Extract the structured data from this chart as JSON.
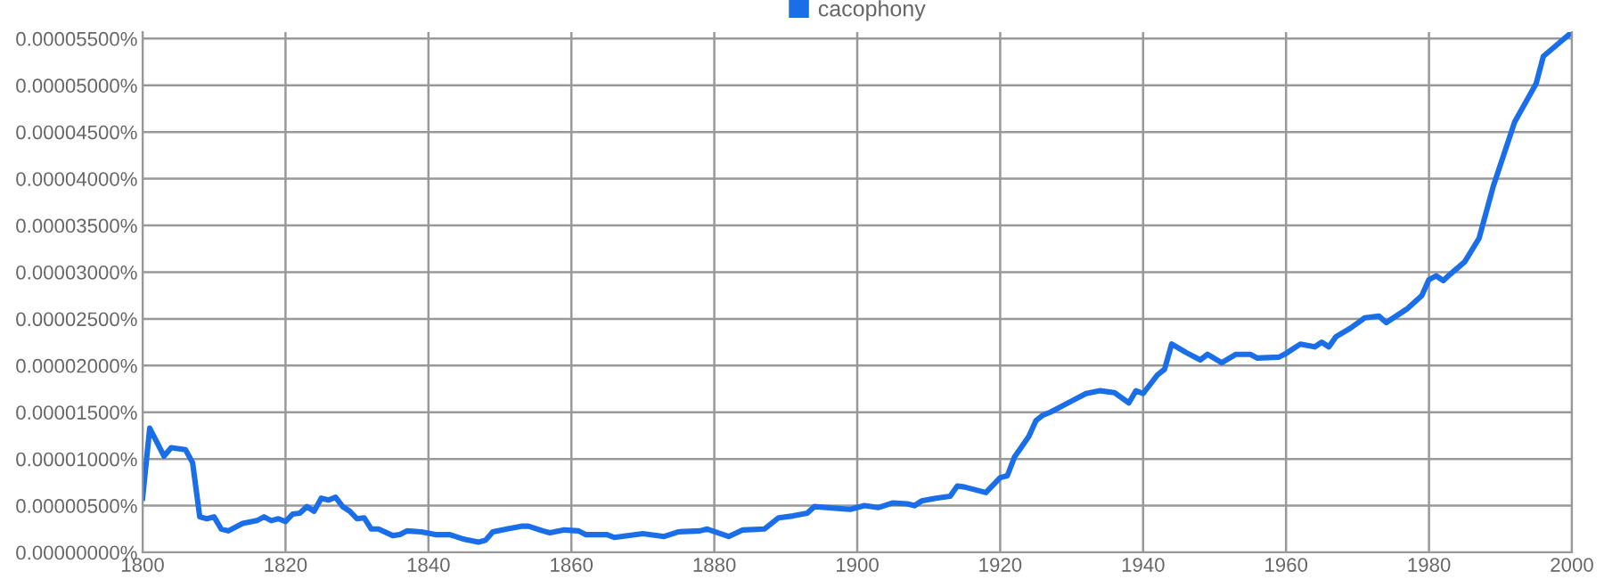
{
  "chart_data": {
    "type": "line",
    "legend": "top",
    "grid": true,
    "marker": "none",
    "line_style": "solid",
    "xlim": [
      1800,
      2000
    ],
    "xticks": [
      1800,
      1820,
      1840,
      1860,
      1880,
      1900,
      1920,
      1940,
      1960,
      1980,
      2000
    ],
    "ylim": [
      0,
      5.57e-05
    ],
    "yticks": [
      {
        "value": 0,
        "label": "0.00000000%"
      },
      {
        "value": 5e-06,
        "label": "0.00000500%"
      },
      {
        "value": 1e-05,
        "label": "0.00001000%"
      },
      {
        "value": 1.5e-05,
        "label": "0.00001500%"
      },
      {
        "value": 2e-05,
        "label": "0.00002000%"
      },
      {
        "value": 2.5e-05,
        "label": "0.00002500%"
      },
      {
        "value": 3e-05,
        "label": "0.00003000%"
      },
      {
        "value": 3.5e-05,
        "label": "0.00003500%"
      },
      {
        "value": 4e-05,
        "label": "0.00004000%"
      },
      {
        "value": 4.5e-05,
        "label": "0.00004500%"
      },
      {
        "value": 5e-05,
        "label": "0.00005000%"
      },
      {
        "value": 5.5e-05,
        "label": "0.00005500%"
      }
    ],
    "series": [
      {
        "name": "cacophony",
        "color": "#1a6fe8",
        "x": [
          1800,
          1801,
          1803,
          1804,
          1806,
          1807,
          1808,
          1809,
          1810,
          1811,
          1812,
          1814,
          1816,
          1817,
          1818,
          1819,
          1820,
          1821,
          1822,
          1823,
          1824,
          1825,
          1826,
          1827,
          1828,
          1829,
          1830,
          1831,
          1832,
          1833,
          1835,
          1836,
          1837,
          1839,
          1841,
          1843,
          1845,
          1847,
          1848,
          1849,
          1851,
          1853,
          1854,
          1856,
          1857,
          1859,
          1861,
          1862,
          1865,
          1866,
          1870,
          1873,
          1875,
          1878,
          1879,
          1882,
          1884,
          1887,
          1889,
          1891,
          1893,
          1894,
          1899,
          1901,
          1903,
          1905,
          1907,
          1908,
          1909,
          1911,
          1913,
          1914,
          1915,
          1918,
          1920,
          1921,
          1922,
          1924,
          1925,
          1926,
          1927,
          1930,
          1932,
          1934,
          1936,
          1938,
          1939,
          1940,
          1942,
          1943,
          1944,
          1946,
          1948,
          1949,
          1951,
          1953,
          1955,
          1956,
          1959,
          1960,
          1962,
          1964,
          1965,
          1966,
          1967,
          1969,
          1971,
          1973,
          1974,
          1977,
          1979,
          1980,
          1981,
          1982,
          1983,
          1985,
          1987,
          1989,
          1992,
          1995,
          1996,
          2000
        ],
        "values": [
          5.8e-06,
          1.33e-05,
          1.03e-05,
          1.12e-05,
          1.1e-05,
          9.6e-06,
          3.8e-06,
          3.6e-06,
          3.8e-06,
          2.5e-06,
          2.3e-06,
          3.1e-06,
          3.4e-06,
          3.8e-06,
          3.4e-06,
          3.6e-06,
          3.3e-06,
          4.1e-06,
          4.2e-06,
          4.9e-06,
          4.4e-06,
          5.8e-06,
          5.6e-06,
          5.9e-06,
          4.9e-06,
          4.4e-06,
          3.6e-06,
          3.7e-06,
          2.5e-06,
          2.5e-06,
          1.8e-06,
          1.9e-06,
          2.3e-06,
          2.2e-06,
          1.9e-06,
          1.9e-06,
          1.4e-06,
          1.1e-06,
          1.3e-06,
          2.2e-06,
          2.5e-06,
          2.8e-06,
          2.8e-06,
          2.3e-06,
          2.1e-06,
          2.4e-06,
          2.3e-06,
          1.9e-06,
          1.9e-06,
          1.6e-06,
          2e-06,
          1.7e-06,
          2.2e-06,
          2.3e-06,
          2.5e-06,
          1.7e-06,
          2.4e-06,
          2.5e-06,
          3.7e-06,
          3.9e-06,
          4.2e-06,
          4.9e-06,
          4.6e-06,
          5e-06,
          4.8e-06,
          5.3e-06,
          5.2e-06,
          5e-06,
          5.5e-06,
          5.8e-06,
          6e-06,
          7.1e-06,
          7e-06,
          6.4e-06,
          8e-06,
          8.2e-06,
          1.02e-05,
          1.24e-05,
          1.41e-05,
          1.47e-05,
          1.5e-05,
          1.62e-05,
          1.7e-05,
          1.73e-05,
          1.71e-05,
          1.6e-05,
          1.73e-05,
          1.7e-05,
          1.9e-05,
          1.96e-05,
          2.23e-05,
          2.14e-05,
          2.06e-05,
          2.12e-05,
          2.03e-05,
          2.12e-05,
          2.12e-05,
          2.08e-05,
          2.09e-05,
          2.13e-05,
          2.23e-05,
          2.2e-05,
          2.25e-05,
          2.2e-05,
          2.31e-05,
          2.4e-05,
          2.51e-05,
          2.53e-05,
          2.46e-05,
          2.61e-05,
          2.75e-05,
          2.92e-05,
          2.96e-05,
          2.91e-05,
          2.98e-05,
          3.11e-05,
          3.36e-05,
          3.92e-05,
          4.61e-05,
          5.02e-05,
          5.31e-05,
          5.57e-05
        ]
      }
    ]
  }
}
